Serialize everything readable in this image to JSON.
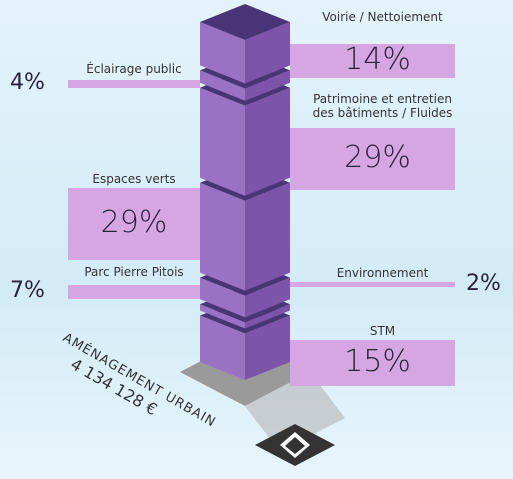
{
  "chart_data": {
    "type": "stacked-column-3d",
    "title": "AMÉNAGEMENT URBAIN",
    "subtitle": "4 134 128 €",
    "categories": [
      "Voirie / Nettoiement",
      "Éclairage public",
      "Patrimoine et entretien des bâtiments / Fluides",
      "Espaces verts",
      "Parc Pierre Pitois",
      "Environnement",
      "STM"
    ],
    "values": [
      14,
      4,
      29,
      29,
      7,
      2,
      15
    ],
    "value_labels": [
      "14%",
      "4%",
      "29%",
      "29%",
      "7%",
      "2%",
      "15%"
    ],
    "color": "#9a72c4"
  }
}
